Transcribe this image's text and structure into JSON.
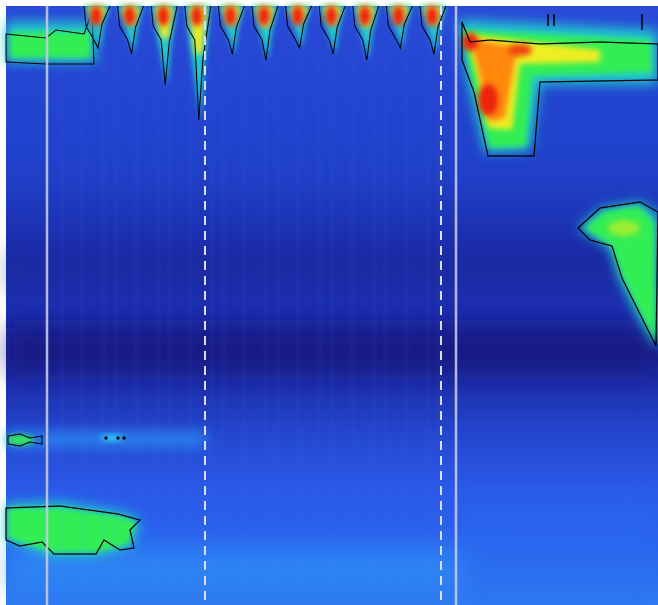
{
  "chart_data": {
    "type": "heatmap",
    "colormap": "jet",
    "colors": [
      "#1a1a7a",
      "#2233cc",
      "#2a66ff",
      "#22ccee",
      "#33ee55",
      "#eeee22",
      "#ff8811",
      "#ee1111"
    ],
    "contour_color": "#000000",
    "grid": false,
    "title": "",
    "xlabel": "",
    "ylabel": "",
    "events": {
      "solid_markers": [
        "left",
        "right"
      ],
      "dashed_markers": [
        "left",
        "right"
      ],
      "swallow_count": 11
    }
  }
}
